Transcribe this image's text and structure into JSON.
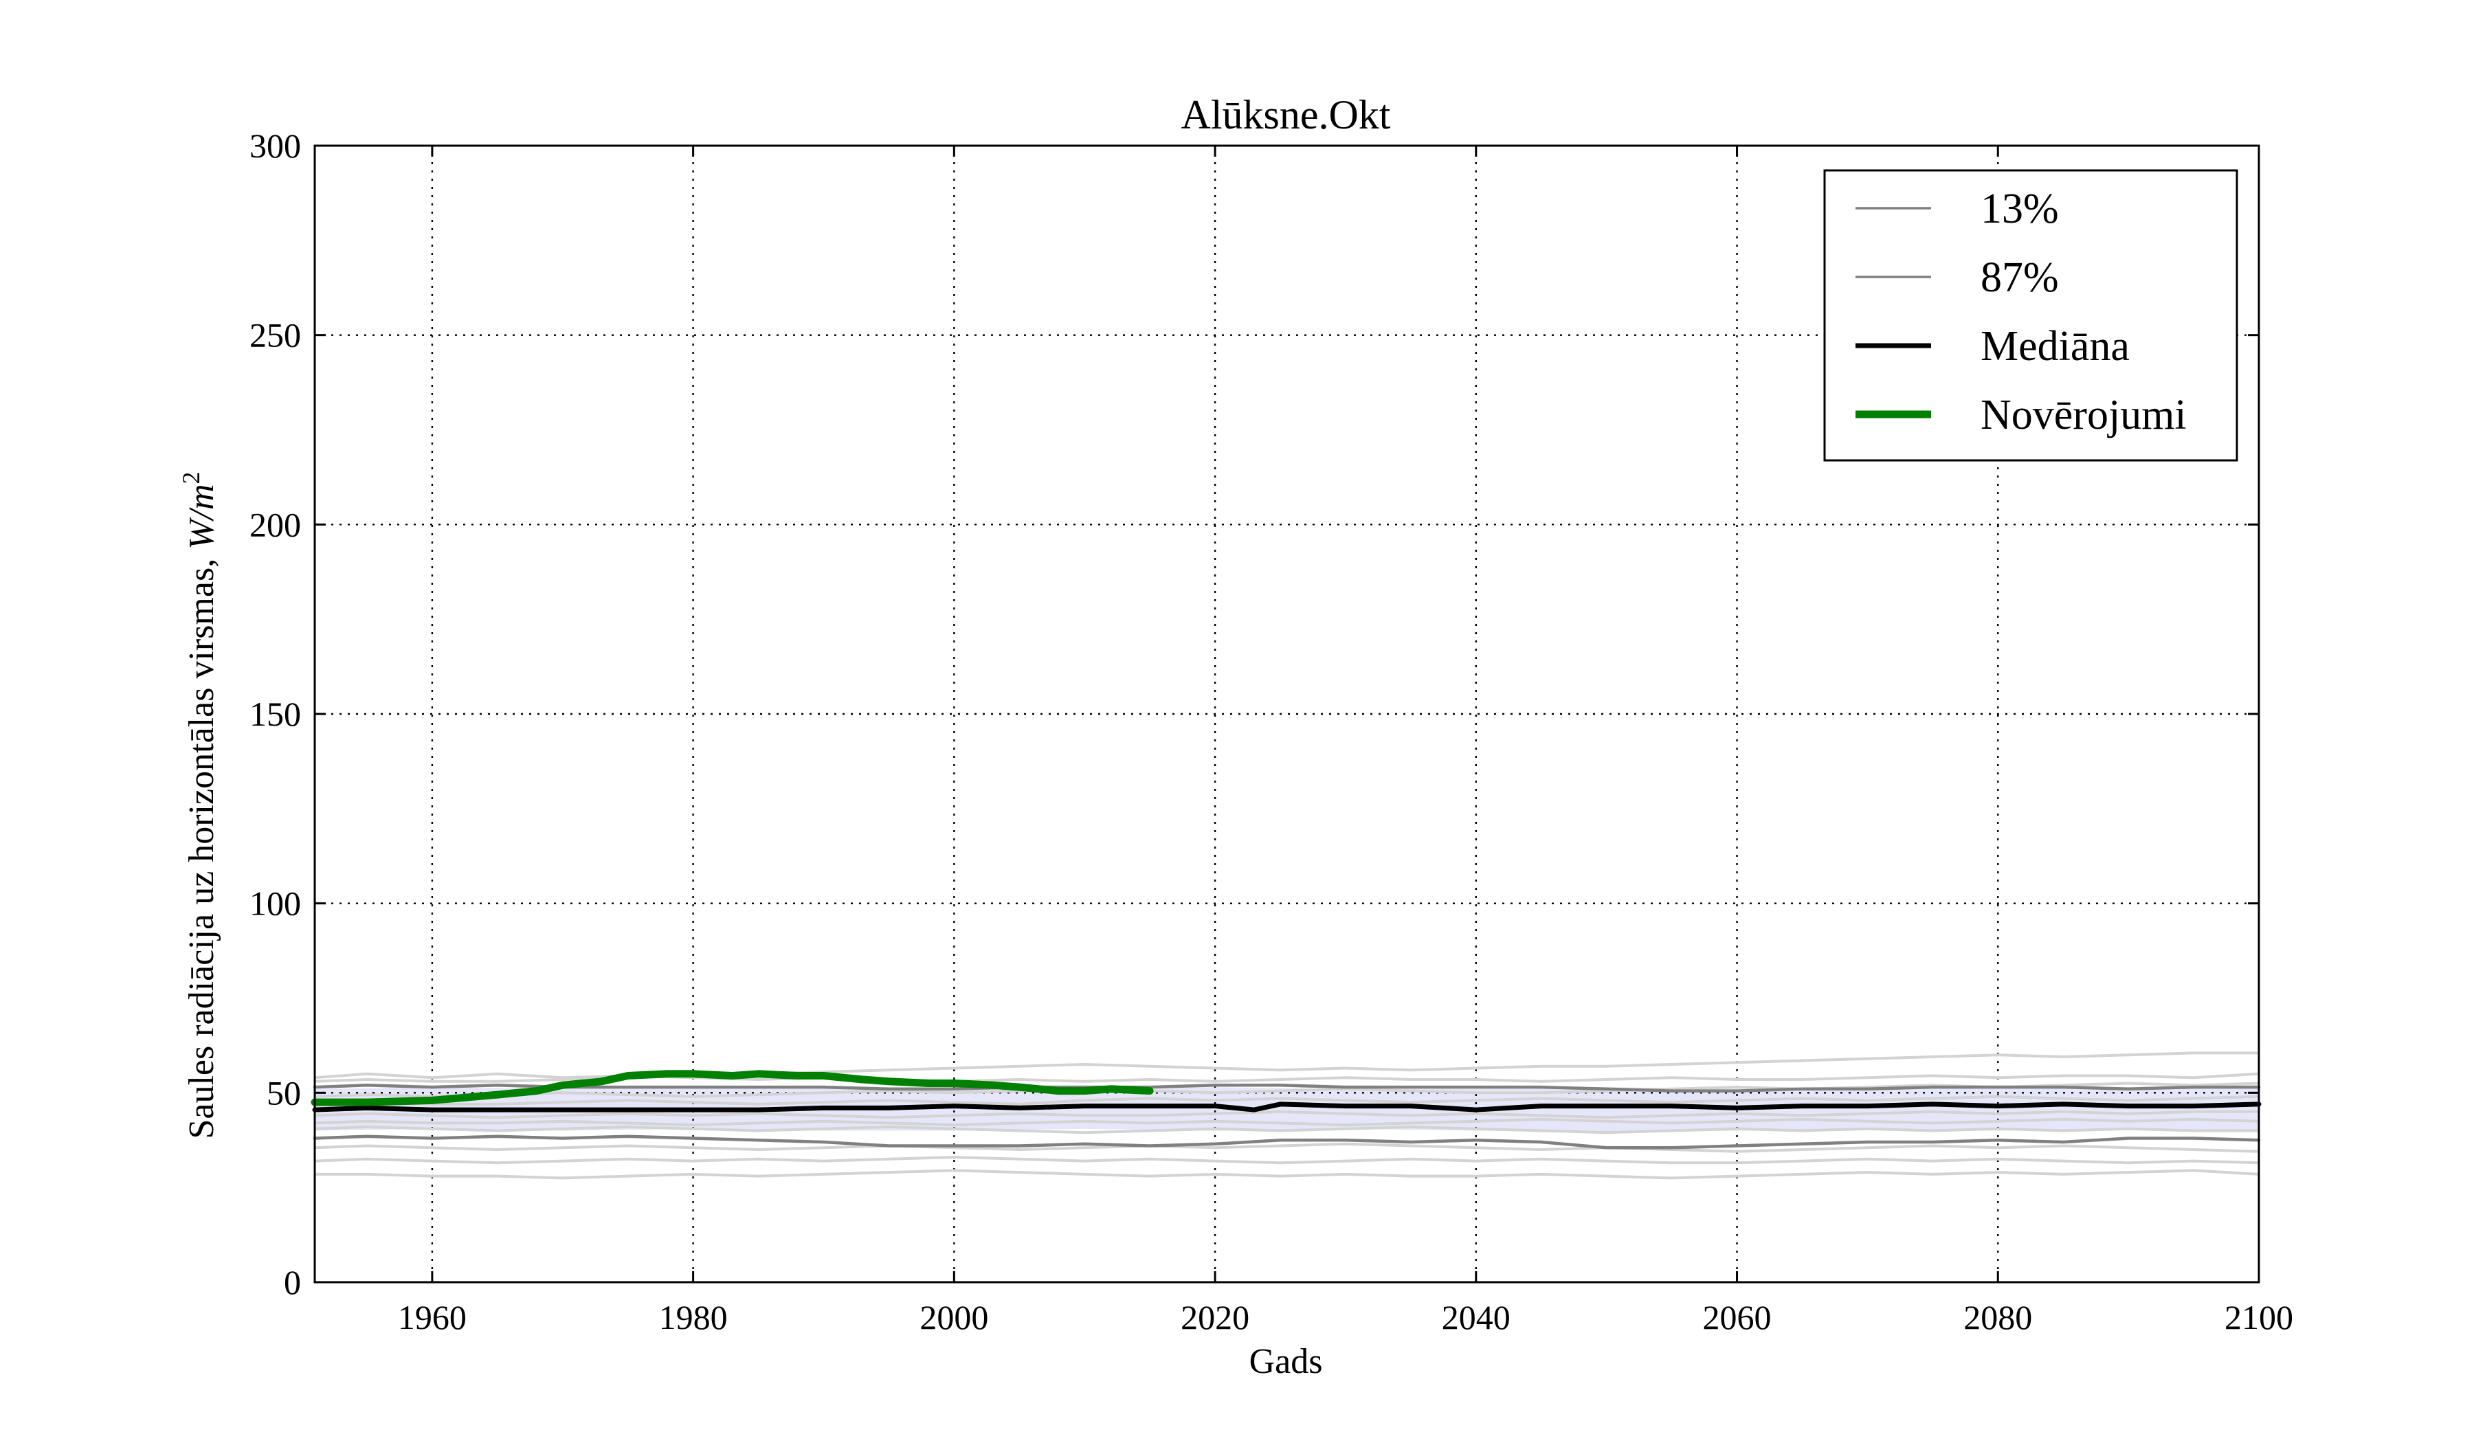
{
  "chart_data": {
    "type": "line",
    "title": "Alūksne.Okt",
    "xlabel": "Gads",
    "ylabel": "Saules radiācija uz horizontālas virsmas, W/m²",
    "ylabel_text": "Saules radiācija uz horizontālas virsmas, ",
    "ylabel_unit": "W/m",
    "ylabel_exp": "2",
    "xlim": [
      1951,
      2100
    ],
    "ylim": [
      0,
      300
    ],
    "xticks": [
      1960,
      1980,
      2000,
      2020,
      2040,
      2060,
      2080,
      2100
    ],
    "yticks": [
      0,
      50,
      100,
      150,
      200,
      250,
      300
    ],
    "grid": true,
    "legend_position": "top-right",
    "legend": [
      {
        "label": "13%",
        "color": "#808080",
        "style": "thin"
      },
      {
        "label": "87%",
        "color": "#808080",
        "style": "thin"
      },
      {
        "label": "Mediāna",
        "color": "#000000",
        "style": "medium"
      },
      {
        "label": "Novērojumi",
        "color": "#008000",
        "style": "thick"
      }
    ],
    "band": {
      "color": "#e6e6fa",
      "x": [
        1951,
        1960,
        1970,
        1980,
        1990,
        2000,
        2010,
        2020,
        2030,
        2040,
        2050,
        2060,
        2070,
        2080,
        2090,
        2100
      ],
      "lower": [
        40,
        40.5,
        40,
        40.5,
        40,
        40,
        40.5,
        40,
        40.5,
        40,
        39.5,
        40,
        40.5,
        40,
        40.5,
        40
      ],
      "upper": [
        51,
        51.5,
        51,
        51.5,
        51,
        51.5,
        51,
        51.5,
        51,
        51,
        51.5,
        51,
        51.5,
        52,
        51.5,
        52
      ]
    },
    "series": [
      {
        "name": "Novērojumi",
        "color": "#008000",
        "x": [
          1951,
          1955,
          1960,
          1965,
          1968,
          1970,
          1973,
          1975,
          1978,
          1980,
          1983,
          1985,
          1988,
          1990,
          1993,
          1995,
          1998,
          2000,
          2003,
          2005,
          2008,
          2010,
          2012,
          2015
        ],
        "values": [
          47.5,
          47.5,
          48,
          49.5,
          50.5,
          52,
          53,
          54.5,
          55,
          55,
          54.5,
          55,
          54.5,
          54.5,
          53.5,
          53,
          52.5,
          52.5,
          52,
          51.5,
          50.5,
          50.5,
          51,
          50.5
        ]
      },
      {
        "name": "Mediāna",
        "color": "#000000",
        "x": [
          1951,
          1955,
          1960,
          1965,
          1970,
          1975,
          1980,
          1985,
          1990,
          1995,
          2000,
          2005,
          2010,
          2015,
          2020,
          2023,
          2025,
          2030,
          2035,
          2040,
          2045,
          2050,
          2055,
          2060,
          2065,
          2070,
          2075,
          2080,
          2085,
          2090,
          2095,
          2100
        ],
        "values": [
          45.5,
          46,
          45.5,
          45.5,
          45.5,
          45.5,
          45.5,
          45.5,
          46,
          46,
          46.5,
          46,
          46.5,
          46.5,
          46.5,
          45.5,
          47,
          46.5,
          46.5,
          45.5,
          46.5,
          46.5,
          46.5,
          46,
          46.5,
          46.5,
          47,
          46.5,
          47,
          46.5,
          46.5,
          47
        ]
      },
      {
        "name": "13%",
        "color": "#808080",
        "x": [
          1951,
          1955,
          1960,
          1965,
          1970,
          1975,
          1980,
          1985,
          1990,
          1995,
          2000,
          2005,
          2010,
          2015,
          2020,
          2025,
          2030,
          2035,
          2040,
          2045,
          2050,
          2055,
          2060,
          2065,
          2070,
          2075,
          2080,
          2085,
          2090,
          2095,
          2100
        ],
        "values": [
          38,
          38.5,
          38,
          38.5,
          38,
          38.5,
          38,
          37.5,
          37,
          36,
          36,
          36,
          36.5,
          36,
          36.5,
          37.5,
          37.5,
          37,
          37.5,
          37,
          35.5,
          35.5,
          36,
          36.5,
          37,
          37,
          37.5,
          37,
          38,
          38,
          37.5
        ]
      },
      {
        "name": "87%",
        "color": "#808080",
        "x": [
          1951,
          1955,
          1960,
          1965,
          1970,
          1975,
          1980,
          1985,
          1990,
          1995,
          2000,
          2005,
          2010,
          2015,
          2020,
          2025,
          2030,
          2035,
          2040,
          2045,
          2050,
          2055,
          2060,
          2065,
          2070,
          2075,
          2080,
          2085,
          2090,
          2095,
          2100
        ],
        "values": [
          51.5,
          52,
          51.5,
          52,
          51.5,
          51.5,
          51.5,
          51.5,
          51.5,
          51,
          51,
          51.5,
          51.5,
          51.5,
          52,
          52,
          51.5,
          51.5,
          51.5,
          51.5,
          51,
          50.5,
          50.5,
          51,
          51,
          51.5,
          51.5,
          51.5,
          51,
          51.5,
          51.5
        ]
      }
    ],
    "ensemble_color": "#d3d3d3",
    "ensemble": [
      [
        54,
        55,
        54,
        55,
        54,
        54.5,
        54,
        53.5,
        54,
        53.5,
        53,
        53.5,
        53,
        53.5,
        53,
        53.5,
        54,
        53.5,
        53.5,
        53,
        53.5,
        54,
        53.5,
        53.5,
        54,
        54.5,
        54,
        54.5,
        54.5,
        54,
        55
      ],
      [
        53,
        53.5,
        53,
        53,
        53.5,
        54,
        54.5,
        55,
        55.5,
        56,
        56.5,
        57,
        57.5,
        57,
        56.5,
        56,
        56.5,
        56,
        56.5,
        57,
        57,
        57.5,
        58,
        58.5,
        59,
        59.5,
        60,
        59.5,
        60,
        60.5,
        60.5
      ],
      [
        49,
        49.5,
        49,
        49.5,
        50,
        49.5,
        49,
        49.5,
        50,
        50.5,
        50,
        50.5,
        51,
        50.5,
        50,
        50.5,
        51,
        50.5,
        50,
        50,
        50.5,
        51,
        51.5,
        51,
        51.5,
        52,
        51.5,
        52,
        52.5,
        52,
        52.5
      ],
      [
        47,
        47.5,
        47,
        47,
        47.5,
        48,
        47.5,
        47,
        47.5,
        48,
        47.5,
        47,
        48,
        48.5,
        48,
        48.5,
        48,
        47.5,
        48,
        48.5,
        48,
        47.5,
        48,
        48.5,
        48,
        48.5,
        49,
        48.5,
        48,
        48.5,
        49
      ],
      [
        44,
        44.5,
        44,
        43.5,
        44,
        44.5,
        44,
        44.5,
        44,
        43.5,
        44,
        44.5,
        44,
        44,
        44.5,
        45,
        44.5,
        44,
        44.5,
        44,
        43.5,
        44,
        44.5,
        44,
        44.5,
        45,
        44.5,
        45,
        44.5,
        45,
        45
      ],
      [
        42,
        42.5,
        42,
        42,
        42.5,
        42,
        41.5,
        42,
        42.5,
        42,
        41.5,
        42,
        42.5,
        42,
        42.5,
        42,
        41.5,
        42,
        42.5,
        43,
        42.5,
        42,
        42.5,
        43,
        42.5,
        42,
        42.5,
        43,
        42.5,
        43,
        42.5
      ],
      [
        40.5,
        41,
        40.5,
        40,
        40.5,
        41,
        40.5,
        40,
        40.5,
        41,
        40.5,
        40,
        39.5,
        40,
        40.5,
        40,
        40.5,
        41,
        40.5,
        40,
        39.5,
        40,
        40.5,
        40,
        40.5,
        40,
        40.5,
        40,
        40.5,
        40,
        40
      ],
      [
        35.5,
        36,
        35.5,
        35,
        35.5,
        36,
        35.5,
        35,
        35.5,
        36,
        35.5,
        35,
        35.5,
        36,
        35.5,
        36,
        36.5,
        36,
        35.5,
        35,
        35.5,
        35,
        34.5,
        35,
        35.5,
        36,
        35.5,
        36,
        35.5,
        35,
        34.5
      ],
      [
        32,
        32.5,
        32,
        31.5,
        32,
        32.5,
        32,
        32.5,
        32,
        32.5,
        33,
        32.5,
        32,
        32.5,
        32,
        31.5,
        32,
        32.5,
        32,
        32.5,
        32,
        31.5,
        31.5,
        32,
        32.5,
        32,
        32.5,
        32,
        31.5,
        32,
        31.5
      ],
      [
        28.5,
        28.5,
        28,
        28,
        27.5,
        28,
        28.5,
        28,
        28.5,
        29,
        29.5,
        29,
        28.5,
        28,
        28.5,
        28,
        28.5,
        28,
        28,
        28.5,
        28,
        27.5,
        28,
        28.5,
        29,
        28.5,
        29,
        28.5,
        29,
        29.5,
        28.5
      ]
    ]
  }
}
